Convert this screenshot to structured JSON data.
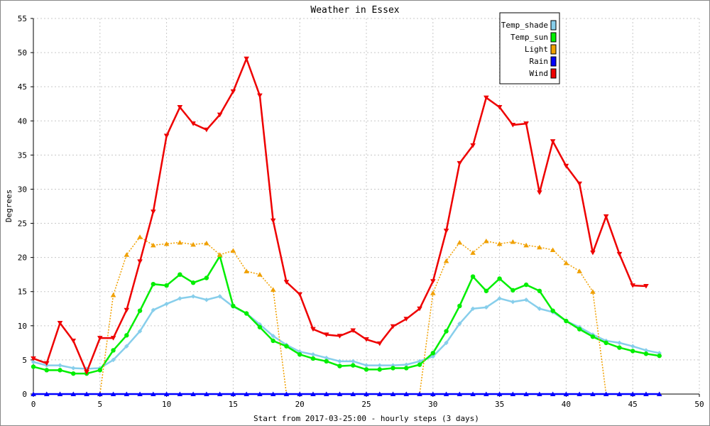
{
  "chart_data": {
    "type": "line",
    "title": "Weather in Essex",
    "xlabel": "Start from 2017-03-25:00 - hourly steps (3 days)",
    "ylabel": "Degrees",
    "xlim": [
      0,
      50
    ],
    "ylim": [
      0,
      55
    ],
    "xticks": [
      0,
      5,
      10,
      15,
      20,
      25,
      30,
      35,
      40,
      45,
      50
    ],
    "yticks": [
      0,
      5,
      10,
      15,
      20,
      25,
      30,
      35,
      40,
      45,
      50,
      55
    ],
    "grid": true,
    "legend_position": "top-right",
    "series": [
      {
        "name": "Temp_shade",
        "color": "#87ceeb",
        "marker": "diamond",
        "dash": false,
        "x": [
          0,
          1,
          2,
          3,
          4,
          5,
          6,
          7,
          8,
          9,
          10,
          11,
          12,
          13,
          14,
          15,
          16,
          17,
          18,
          19,
          20,
          21,
          22,
          23,
          24,
          25,
          26,
          27,
          28,
          29,
          30,
          31,
          32,
          33,
          34,
          35,
          36,
          37,
          38,
          39,
          40,
          41,
          42,
          43,
          44,
          45,
          46,
          47
        ],
        "values": [
          4.7,
          4.2,
          4.2,
          3.8,
          3.7,
          3.8,
          5.0,
          7.0,
          9.2,
          12.3,
          13.2,
          14.0,
          14.3,
          13.8,
          14.3,
          12.8,
          11.8,
          10.2,
          8.5,
          7.2,
          6.2,
          5.8,
          5.3,
          4.8,
          4.8,
          4.2,
          4.2,
          4.2,
          4.3,
          4.8,
          5.5,
          7.5,
          10.3,
          12.5,
          12.7,
          14.0,
          13.5,
          13.8,
          12.5,
          12.0,
          10.7,
          9.8,
          8.7,
          7.8,
          7.5,
          7.0,
          6.4,
          6.0
        ]
      },
      {
        "name": "Temp_sun",
        "color": "#00ee00",
        "marker": "circle",
        "dash": false,
        "x": [
          0,
          1,
          2,
          3,
          4,
          5,
          6,
          7,
          8,
          9,
          10,
          11,
          12,
          13,
          14,
          15,
          16,
          17,
          18,
          19,
          20,
          21,
          22,
          23,
          24,
          25,
          26,
          27,
          28,
          29,
          30,
          31,
          32,
          33,
          34,
          35,
          36,
          37,
          38,
          39,
          40,
          41,
          42,
          43,
          44,
          45,
          46,
          47
        ],
        "values": [
          4.0,
          3.5,
          3.5,
          3.0,
          3.0,
          3.5,
          6.4,
          8.6,
          12.2,
          16.1,
          15.9,
          17.5,
          16.3,
          17.0,
          20.2,
          12.9,
          11.8,
          9.8,
          7.8,
          7.0,
          5.8,
          5.2,
          4.8,
          4.1,
          4.2,
          3.6,
          3.6,
          3.8,
          3.8,
          4.3,
          6.0,
          9.2,
          12.9,
          17.2,
          15.1,
          16.9,
          15.2,
          16.0,
          15.1,
          12.2,
          10.7,
          9.5,
          8.4,
          7.5,
          6.8,
          6.3,
          5.9,
          5.6
        ]
      },
      {
        "name": "Light",
        "color": "#f0a000",
        "marker": "triangle-up",
        "dash": true,
        "x": [
          0,
          1,
          2,
          3,
          4,
          5,
          6,
          7,
          8,
          9,
          10,
          11,
          12,
          13,
          14,
          15,
          16,
          17,
          18,
          19,
          20,
          21,
          22,
          23,
          24,
          25,
          26,
          27,
          28,
          29,
          30,
          31,
          32,
          33,
          34,
          35,
          36,
          37,
          38,
          39,
          40,
          41,
          42,
          43,
          44,
          45,
          46,
          47
        ],
        "values": [
          0,
          0,
          0,
          0,
          0,
          0,
          14.5,
          20.4,
          23.0,
          21.8,
          22.0,
          22.2,
          21.9,
          22.1,
          20.4,
          21.0,
          18.0,
          17.5,
          15.3,
          0,
          0,
          0,
          0,
          0,
          0,
          0,
          0,
          0,
          0,
          0,
          14.8,
          19.5,
          22.2,
          20.7,
          22.4,
          22.0,
          22.3,
          21.8,
          21.5,
          21.1,
          19.2,
          18.0,
          15.0,
          0,
          0,
          0,
          0,
          0
        ]
      },
      {
        "name": "Rain",
        "color": "#0000ff",
        "marker": "triangle-up",
        "dash": false,
        "x": [
          0,
          1,
          2,
          3,
          4,
          5,
          6,
          7,
          8,
          9,
          10,
          11,
          12,
          13,
          14,
          15,
          16,
          17,
          18,
          19,
          20,
          21,
          22,
          23,
          24,
          25,
          26,
          27,
          28,
          29,
          30,
          31,
          32,
          33,
          34,
          35,
          36,
          37,
          38,
          39,
          40,
          41,
          42,
          43,
          44,
          45,
          46,
          47
        ],
        "values": [
          0,
          0,
          0,
          0,
          0,
          0,
          0,
          0,
          0,
          0,
          0,
          0,
          0,
          0,
          0,
          0,
          0,
          0,
          0,
          0,
          0,
          0,
          0,
          0,
          0,
          0,
          0,
          0,
          0,
          0,
          0,
          0,
          0,
          0,
          0,
          0,
          0,
          0,
          0,
          0,
          0,
          0,
          0,
          0,
          0,
          0,
          0,
          0
        ]
      },
      {
        "name": "Wind",
        "color": "#ee0000",
        "marker": "triangle-down",
        "dash": false,
        "x": [
          0,
          1,
          2,
          3,
          4,
          5,
          6,
          7,
          8,
          9,
          10,
          11,
          12,
          13,
          14,
          15,
          16,
          17,
          18,
          19,
          20,
          21,
          22,
          23,
          24,
          25,
          26,
          27,
          28,
          29,
          30,
          31,
          32,
          33,
          34,
          35,
          36,
          37,
          38,
          39,
          40,
          41,
          42,
          43,
          44,
          45,
          46
        ],
        "values": [
          5.2,
          4.5,
          10.4,
          7.8,
          3.2,
          8.2,
          8.2,
          12.3,
          19.4,
          26.7,
          37.8,
          42.0,
          39.6,
          38.7,
          40.9,
          44.3,
          49.1,
          43.7,
          25.4,
          16.4,
          14.6,
          9.5,
          8.7,
          8.5,
          9.3,
          8.0,
          7.4,
          9.9,
          11.0,
          12.5,
          16.5,
          23.9,
          33.8,
          36.4,
          43.4,
          42.0,
          39.4,
          39.6,
          29.5,
          37.0,
          33.4,
          30.8,
          20.7,
          26.0,
          20.5,
          15.9,
          15.8
        ]
      }
    ]
  }
}
